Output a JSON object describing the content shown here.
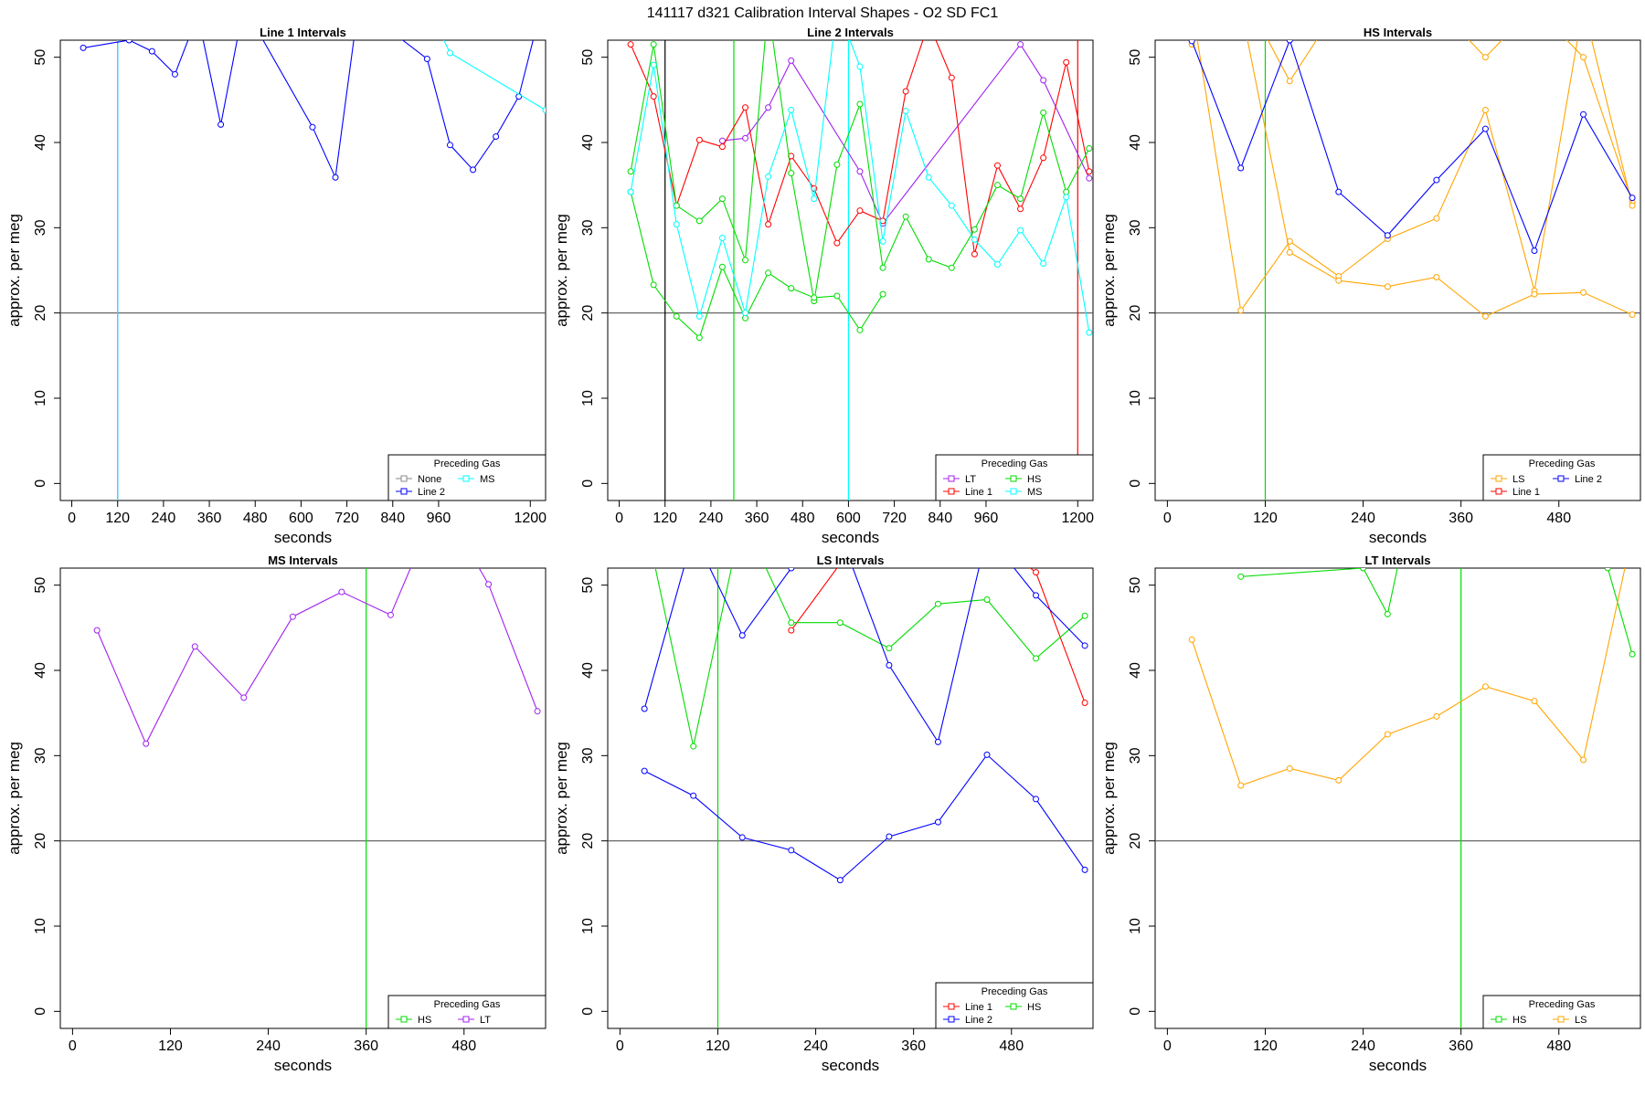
{
  "figure_title": "141117   d321   Calibration Interval Shapes - O2 SD FC1",
  "colors": {
    "None": "#888888",
    "Line 1": "#ff0000",
    "Line 2": "#0000ff",
    "HS": "#00dd00",
    "MS": "#00ffff",
    "LS": "#ffa500",
    "LT": "#a020f0",
    "refline": "#555555",
    "axis": "#000000"
  },
  "chart_data": [
    {
      "type": "line",
      "title": "Line 1 Intervals",
      "xlabel": "seconds",
      "ylabel": "approx. per meg",
      "xlim": [
        -30,
        1240
      ],
      "ylim": [
        -2,
        52
      ],
      "xticks": [
        0,
        120,
        240,
        360,
        480,
        600,
        720,
        840,
        960,
        1200
      ],
      "yticks": [
        0,
        10,
        20,
        30,
        40,
        50
      ],
      "hline": 20,
      "vlines": [
        {
          "x": 120,
          "color": "LT"
        },
        {
          "x": 120,
          "color": "MS"
        }
      ],
      "legend": {
        "title": "Preceding Gas",
        "position": "bottom-right",
        "rows": [
          [
            "None",
            "MS"
          ],
          [
            "Line 2"
          ]
        ]
      },
      "series": [
        {
          "name": "Line 2",
          "x": [
            30,
            150,
            210,
            270,
            330,
            390,
            450,
            630,
            690,
            750,
            930,
            990,
            1050,
            1110,
            1170,
            1230
          ],
          "y": [
            51.1,
            52,
            50.7,
            48,
            55,
            42.1,
            56,
            41.8,
            35.9,
            56,
            49.8,
            39.7,
            36.8,
            40.7,
            45.4,
            56
          ]
        },
        {
          "name": "MS",
          "x": [
            930,
            990,
            1240
          ],
          "y": [
            56,
            50.5,
            43.8
          ]
        }
      ]
    },
    {
      "type": "line",
      "title": "Line 2 Intervals",
      "xlabel": "seconds",
      "ylabel": "approx. per meg",
      "xlim": [
        -30,
        1240
      ],
      "ylim": [
        -2,
        52
      ],
      "xticks": [
        0,
        120,
        240,
        360,
        480,
        600,
        720,
        840,
        960,
        1200
      ],
      "yticks": [
        0,
        10,
        20,
        30,
        40,
        50
      ],
      "hline": 20,
      "vlines": [
        {
          "x": 120,
          "color": "axis"
        },
        {
          "x": 300,
          "color": "HS"
        },
        {
          "x": 600,
          "color": "MS"
        },
        {
          "x": 1200,
          "color": "Line 1"
        }
      ],
      "legend": {
        "title": "Preceding Gas",
        "position": "bottom-right",
        "rows": [
          [
            "LT",
            "HS"
          ],
          [
            "Line 1",
            "MS"
          ]
        ]
      },
      "series": [
        {
          "name": "LT",
          "x": [
            270,
            330,
            390,
            450,
            630,
            690,
            1050,
            1110,
            1230
          ],
          "y": [
            40.2,
            40.5,
            44.1,
            49.6,
            36.6,
            30.5,
            51.5,
            47.3,
            35.8
          ]
        },
        {
          "name": "Line 1",
          "x": [
            30,
            90,
            150,
            210,
            270,
            330,
            390,
            450,
            510,
            570,
            630,
            690,
            750,
            810,
            870,
            930,
            990,
            1050,
            1110,
            1170,
            1230
          ],
          "y": [
            51.5,
            45.4,
            32.6,
            40.3,
            39.5,
            44.1,
            30.4,
            38.4,
            34.6,
            28.2,
            32,
            30.8,
            46,
            54,
            47.6,
            26.9,
            37.3,
            32.2,
            38.2,
            49.4,
            36.6
          ]
        },
        {
          "name": "HS",
          "x": [
            30,
            90,
            150,
            210,
            270,
            330,
            390,
            450,
            510,
            570,
            630,
            690,
            750,
            810,
            870,
            930,
            990,
            1050,
            1110,
            1170,
            1230
          ],
          "y": [
            36.6,
            51.5,
            32.6,
            30.8,
            33.4,
            26.2,
            56,
            36.4,
            21.4,
            37.4,
            44.5,
            25.3,
            31.3,
            26.3,
            25.3,
            29.8,
            35,
            33.4,
            43.5,
            34.2,
            39.3
          ]
        },
        {
          "name": "HS",
          "x": [
            30,
            90,
            150,
            210,
            270,
            330,
            390,
            450,
            510,
            570,
            630,
            690
          ],
          "y": [
            34.2,
            23.3,
            19.6,
            17.1,
            25.4,
            19.4,
            24.7,
            22.9,
            21.8,
            22,
            18,
            22.2
          ]
        },
        {
          "name": "MS",
          "x": [
            30,
            90,
            150,
            210,
            270,
            330,
            390,
            450,
            510,
            570,
            630,
            690,
            750,
            810,
            870,
            930,
            990,
            1050,
            1110,
            1170,
            1230
          ],
          "y": [
            34.2,
            49.1,
            30.4,
            19.6,
            28.8,
            20,
            36,
            43.8,
            33.4,
            56,
            48.9,
            28.4,
            43.7,
            35.9,
            32.6,
            28.6,
            25.7,
            29.7,
            25.8,
            33.6,
            17.7
          ]
        }
      ]
    },
    {
      "type": "line",
      "title": "HS Intervals",
      "xlabel": "seconds",
      "ylabel": "approx. per meg",
      "xlim": [
        -15,
        580
      ],
      "ylim": [
        -2,
        52
      ],
      "xticks": [
        0,
        120,
        240,
        360,
        480
      ],
      "yticks": [
        0,
        10,
        20,
        30,
        40,
        50
      ],
      "hline": 20,
      "vlines": [
        {
          "x": 120,
          "color": "HS"
        }
      ],
      "legend": {
        "title": "Preceding Gas",
        "position": "bottom-right",
        "rows": [
          [
            "LS",
            "Line 2"
          ],
          [
            "Line 1"
          ]
        ]
      },
      "series": [
        {
          "name": "LS",
          "x": [
            30,
            90,
            150,
            210,
            270,
            330,
            390,
            450,
            510,
            570
          ],
          "y": [
            51.5,
            58,
            47.2,
            56,
            56,
            56,
            50,
            56,
            50,
            33
          ]
        },
        {
          "name": "LS",
          "x": [
            30,
            90,
            150,
            210,
            270,
            330,
            390,
            450,
            510,
            570
          ],
          "y": [
            56,
            20.3,
            28.4,
            24.3,
            28.7,
            31.1,
            43.8,
            22.6,
            56,
            32.6
          ]
        },
        {
          "name": "LS",
          "x": [
            90,
            150,
            210,
            270,
            330,
            390,
            450,
            510,
            570
          ],
          "y": [
            56,
            27.1,
            23.8,
            23.1,
            24.2,
            19.6,
            22.2,
            22.4,
            19.8
          ]
        },
        {
          "name": "Line 2",
          "x": [
            30,
            90,
            150,
            210,
            270,
            330,
            390,
            450,
            510,
            570
          ],
          "y": [
            51.9,
            37,
            52,
            34.2,
            29.1,
            35.6,
            41.6,
            27.3,
            43.3,
            33.5
          ]
        }
      ]
    },
    {
      "type": "line",
      "title": "MS Intervals",
      "xlabel": "seconds",
      "ylabel": "approx. per meg",
      "xlim": [
        -15,
        580
      ],
      "ylim": [
        -2,
        52
      ],
      "xticks": [
        0,
        120,
        240,
        360,
        480
      ],
      "yticks": [
        0,
        10,
        20,
        30,
        40,
        50
      ],
      "hline": 20,
      "vlines": [
        {
          "x": 360,
          "color": "HS"
        }
      ],
      "legend": {
        "title": "Preceding Gas",
        "position": "bottom-right",
        "rows": [
          [
            "HS",
            "LT"
          ]
        ]
      },
      "series": [
        {
          "name": "LT",
          "x": [
            30,
            90,
            150,
            210,
            270,
            330,
            390,
            450,
            510,
            570
          ],
          "y": [
            44.7,
            31.4,
            42.8,
            36.8,
            46.3,
            49.2,
            46.5,
            60,
            50.1,
            35.2
          ]
        }
      ]
    },
    {
      "type": "line",
      "title": "LS Intervals",
      "xlabel": "seconds",
      "ylabel": "approx. per meg",
      "xlim": [
        -15,
        580
      ],
      "ylim": [
        -2,
        52
      ],
      "xticks": [
        0,
        120,
        240,
        360,
        480
      ],
      "yticks": [
        0,
        10,
        20,
        30,
        40,
        50
      ],
      "hline": 20,
      "vlines": [
        {
          "x": 120,
          "color": "HS"
        }
      ],
      "legend": {
        "title": "Preceding Gas",
        "position": "bottom-right",
        "rows": [
          [
            "Line 1",
            "HS"
          ],
          [
            "Line 2"
          ]
        ]
      },
      "series": [
        {
          "name": "Line 1",
          "x": [
            210,
            270,
            330,
            390,
            450,
            510,
            570
          ],
          "y": [
            44.7,
            52.5,
            56,
            56,
            56,
            51.5,
            36.2
          ]
        },
        {
          "name": "HS",
          "x": [
            30,
            90,
            150,
            210,
            270,
            330,
            390,
            450,
            510,
            570
          ],
          "y": [
            58,
            31.1,
            58,
            45.6,
            45.6,
            42.6,
            47.8,
            48.3,
            41.4,
            46.4
          ]
        },
        {
          "name": "Line 2",
          "x": [
            30,
            90,
            150,
            210,
            270,
            330,
            390,
            450,
            510,
            570
          ],
          "y": [
            35.5,
            56,
            44.1,
            52,
            56,
            40.6,
            31.6,
            56,
            48.8,
            42.9
          ]
        },
        {
          "name": "Line 2",
          "x": [
            30,
            90,
            150,
            210,
            270,
            330,
            390,
            450,
            510,
            570
          ],
          "y": [
            28.2,
            25.3,
            20.4,
            18.9,
            15.4,
            20.5,
            22.2,
            30.1,
            24.9,
            16.6
          ]
        }
      ]
    },
    {
      "type": "line",
      "title": "LT Intervals",
      "xlabel": "seconds",
      "ylabel": "approx. per meg",
      "xlim": [
        -15,
        580
      ],
      "ylim": [
        -2,
        52
      ],
      "xticks": [
        0,
        120,
        240,
        360,
        480
      ],
      "yticks": [
        0,
        10,
        20,
        30,
        40,
        50
      ],
      "hline": 20,
      "vlines": [
        {
          "x": 360,
          "color": "HS"
        }
      ],
      "legend": {
        "title": "Preceding Gas",
        "position": "bottom-right",
        "rows": [
          [
            "HS",
            "LS"
          ]
        ]
      },
      "series": [
        {
          "name": "HS",
          "x": [
            90,
            240,
            270,
            300,
            540,
            570
          ],
          "y": [
            51,
            52,
            46.6,
            60,
            52,
            41.9
          ]
        },
        {
          "name": "LS",
          "x": [
            30,
            90,
            150,
            210,
            270,
            330,
            390,
            450,
            510,
            570
          ],
          "y": [
            43.6,
            26.5,
            28.5,
            27.1,
            32.5,
            34.6,
            38.1,
            36.4,
            29.5,
            56
          ]
        }
      ]
    }
  ]
}
